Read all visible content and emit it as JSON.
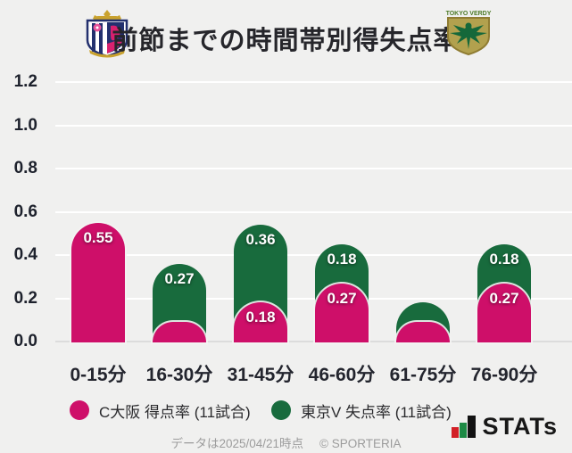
{
  "header": {
    "title": "前節までの時間帯別得失点率",
    "home_logo": "cerezo-osaka-crest",
    "away_logo": "tokyo-verdy-crest",
    "verdy_text": "TOKYO VERDY"
  },
  "chart_data": {
    "type": "bar",
    "title": "前節までの時間帯別得失点率",
    "categories": [
      "0-15分",
      "16-30分",
      "31-45分",
      "46-60分",
      "61-75分",
      "76-90分"
    ],
    "series": [
      {
        "name": "C大阪 得点率 (11試合)",
        "color": "#ce0f69",
        "values": [
          0.55,
          0.09,
          0.18,
          0.27,
          0.09,
          0.27
        ]
      },
      {
        "name": "東京V 失点率 (11試合)",
        "color": "#186b3d",
        "values": [
          0,
          0.27,
          0.36,
          0.18,
          0.09,
          0.18
        ]
      }
    ],
    "stacked": true,
    "ylim": [
      0,
      1.2
    ],
    "yticks": [
      0,
      0.2,
      0.4,
      0.6,
      0.8,
      1.0,
      1.2
    ],
    "grid": "horizontal-white",
    "legend_position": "bottom",
    "value_label_min": 0.15
  },
  "footer": {
    "note": "データは2025/04/21時点",
    "copyright": "© SPORTERIA",
    "brand": "STATs"
  }
}
